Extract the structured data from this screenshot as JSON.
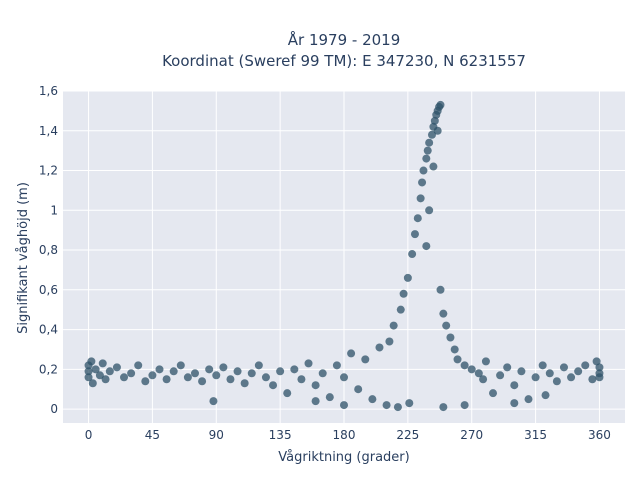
{
  "chart_data": {
    "type": "scatter",
    "title_lines": [
      "År 1979 - 2019",
      "Koordinat (Sweref 99 TM): E 347230, N 6231557"
    ],
    "xlabel": "Vågriktning (grader)",
    "ylabel": "Signifikant våghöjd (m)",
    "xlim": [
      -18,
      378
    ],
    "ylim": [
      -0.07,
      1.6
    ],
    "x_ticks": [
      0,
      45,
      90,
      135,
      180,
      225,
      270,
      315,
      360
    ],
    "x_tick_labels": [
      "0",
      "45",
      "90",
      "135",
      "180",
      "225",
      "270",
      "315",
      "360"
    ],
    "y_ticks": [
      0,
      0.2,
      0.4,
      0.6,
      0.8,
      1.0,
      1.2,
      1.4,
      1.6
    ],
    "y_tick_labels": [
      "0",
      "0,2",
      "0,4",
      "0,6",
      "0,8",
      "1",
      "1,2",
      "1,4",
      "1,6"
    ],
    "grid": true,
    "marker_color": "#2e5168",
    "plot_bg": "#e5e8f0",
    "series": [
      {
        "points": [
          [
            0,
            0.19
          ],
          [
            0,
            0.22
          ],
          [
            0,
            0.16
          ],
          [
            2,
            0.24
          ],
          [
            3,
            0.13
          ],
          [
            5,
            0.2
          ],
          [
            8,
            0.17
          ],
          [
            10,
            0.23
          ],
          [
            12,
            0.15
          ],
          [
            15,
            0.19
          ],
          [
            20,
            0.21
          ],
          [
            25,
            0.16
          ],
          [
            30,
            0.18
          ],
          [
            35,
            0.22
          ],
          [
            40,
            0.14
          ],
          [
            45,
            0.17
          ],
          [
            50,
            0.2
          ],
          [
            55,
            0.15
          ],
          [
            60,
            0.19
          ],
          [
            65,
            0.22
          ],
          [
            70,
            0.16
          ],
          [
            75,
            0.18
          ],
          [
            80,
            0.14
          ],
          [
            85,
            0.2
          ],
          [
            88,
            0.04
          ],
          [
            90,
            0.17
          ],
          [
            95,
            0.21
          ],
          [
            100,
            0.15
          ],
          [
            105,
            0.19
          ],
          [
            110,
            0.13
          ],
          [
            115,
            0.18
          ],
          [
            120,
            0.22
          ],
          [
            125,
            0.16
          ],
          [
            130,
            0.12
          ],
          [
            135,
            0.19
          ],
          [
            140,
            0.08
          ],
          [
            145,
            0.2
          ],
          [
            150,
            0.15
          ],
          [
            155,
            0.23
          ],
          [
            160,
            0.12
          ],
          [
            165,
            0.18
          ],
          [
            170,
            0.06
          ],
          [
            175,
            0.22
          ],
          [
            180,
            0.16
          ],
          [
            185,
            0.28
          ],
          [
            190,
            0.1
          ],
          [
            195,
            0.25
          ],
          [
            200,
            0.05
          ],
          [
            205,
            0.31
          ],
          [
            210,
            0.02
          ],
          [
            212,
            0.34
          ],
          [
            215,
            0.42
          ],
          [
            218,
            0.01
          ],
          [
            220,
            0.5
          ],
          [
            222,
            0.58
          ],
          [
            225,
            0.66
          ],
          [
            226,
            0.03
          ],
          [
            228,
            0.78
          ],
          [
            230,
            0.88
          ],
          [
            232,
            0.96
          ],
          [
            234,
            1.06
          ],
          [
            235,
            1.14
          ],
          [
            236,
            1.2
          ],
          [
            238,
            1.26
          ],
          [
            239,
            1.3
          ],
          [
            240,
            1.34
          ],
          [
            242,
            1.38
          ],
          [
            243,
            1.42
          ],
          [
            244,
            1.45
          ],
          [
            245,
            1.48
          ],
          [
            246,
            1.5
          ],
          [
            247,
            1.52
          ],
          [
            248,
            1.53
          ],
          [
            246,
            1.4
          ],
          [
            243,
            1.22
          ],
          [
            240,
            1.0
          ],
          [
            238,
            0.82
          ],
          [
            248,
            0.6
          ],
          [
            250,
            0.48
          ],
          [
            252,
            0.42
          ],
          [
            255,
            0.36
          ],
          [
            258,
            0.3
          ],
          [
            260,
            0.25
          ],
          [
            265,
            0.22
          ],
          [
            270,
            0.2
          ],
          [
            275,
            0.18
          ],
          [
            278,
            0.15
          ],
          [
            280,
            0.24
          ],
          [
            285,
            0.08
          ],
          [
            290,
            0.17
          ],
          [
            295,
            0.21
          ],
          [
            300,
            0.12
          ],
          [
            305,
            0.19
          ],
          [
            310,
            0.05
          ],
          [
            315,
            0.16
          ],
          [
            320,
            0.22
          ],
          [
            322,
            0.07
          ],
          [
            325,
            0.18
          ],
          [
            330,
            0.14
          ],
          [
            335,
            0.21
          ],
          [
            340,
            0.16
          ],
          [
            345,
            0.19
          ],
          [
            350,
            0.22
          ],
          [
            355,
            0.15
          ],
          [
            358,
            0.24
          ],
          [
            360,
            0.18
          ],
          [
            360,
            0.21
          ],
          [
            360,
            0.16
          ],
          [
            300,
            0.03
          ],
          [
            250,
            0.01
          ],
          [
            265,
            0.02
          ],
          [
            180,
            0.02
          ],
          [
            160,
            0.04
          ]
        ]
      }
    ]
  }
}
